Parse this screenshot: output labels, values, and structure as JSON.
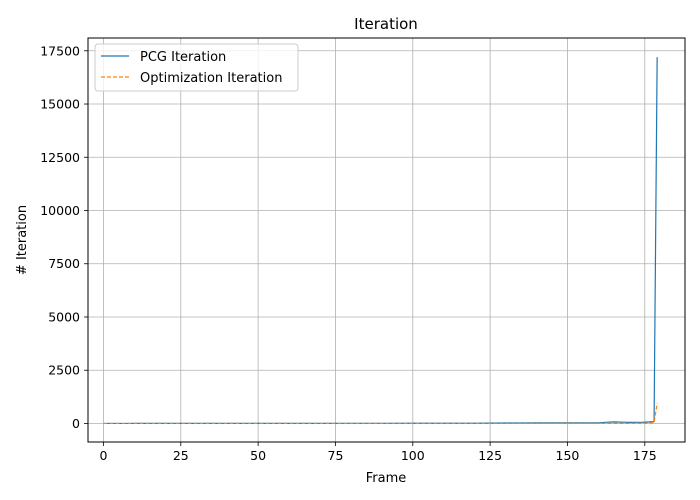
{
  "chart_data": {
    "type": "line",
    "title": "Iteration",
    "xlabel": "Frame",
    "ylabel": "# Iteration",
    "xlim": [
      -5,
      188
    ],
    "ylim": [
      -870,
      18100
    ],
    "xticks": [
      0,
      25,
      50,
      75,
      100,
      125,
      150,
      175
    ],
    "yticks": [
      0,
      2500,
      5000,
      7500,
      10000,
      12500,
      15000,
      17500
    ],
    "grid": true,
    "legend_position": "upper-left",
    "series": [
      {
        "name": "PCG Iteration",
        "color": "#1f77b4",
        "style": "solid",
        "x": [
          0,
          10,
          20,
          30,
          40,
          50,
          60,
          70,
          80,
          90,
          100,
          110,
          120,
          125,
          130,
          135,
          140,
          145,
          150,
          155,
          160,
          163,
          165,
          168,
          170,
          172,
          174,
          176,
          178,
          179
        ],
        "y": [
          2,
          3,
          3,
          4,
          4,
          5,
          6,
          6,
          7,
          8,
          9,
          10,
          12,
          15,
          22,
          26,
          28,
          30,
          28,
          30,
          30,
          60,
          75,
          60,
          50,
          55,
          55,
          70,
          90,
          17200
        ]
      },
      {
        "name": "Optimization Iteration",
        "color": "#ff7f0e",
        "style": "dashed",
        "x": [
          0,
          20,
          40,
          60,
          80,
          100,
          120,
          140,
          160,
          170,
          175,
          178,
          179
        ],
        "y": [
          1,
          1,
          1,
          1,
          1,
          2,
          2,
          3,
          4,
          6,
          10,
          30,
          950
        ]
      }
    ]
  }
}
